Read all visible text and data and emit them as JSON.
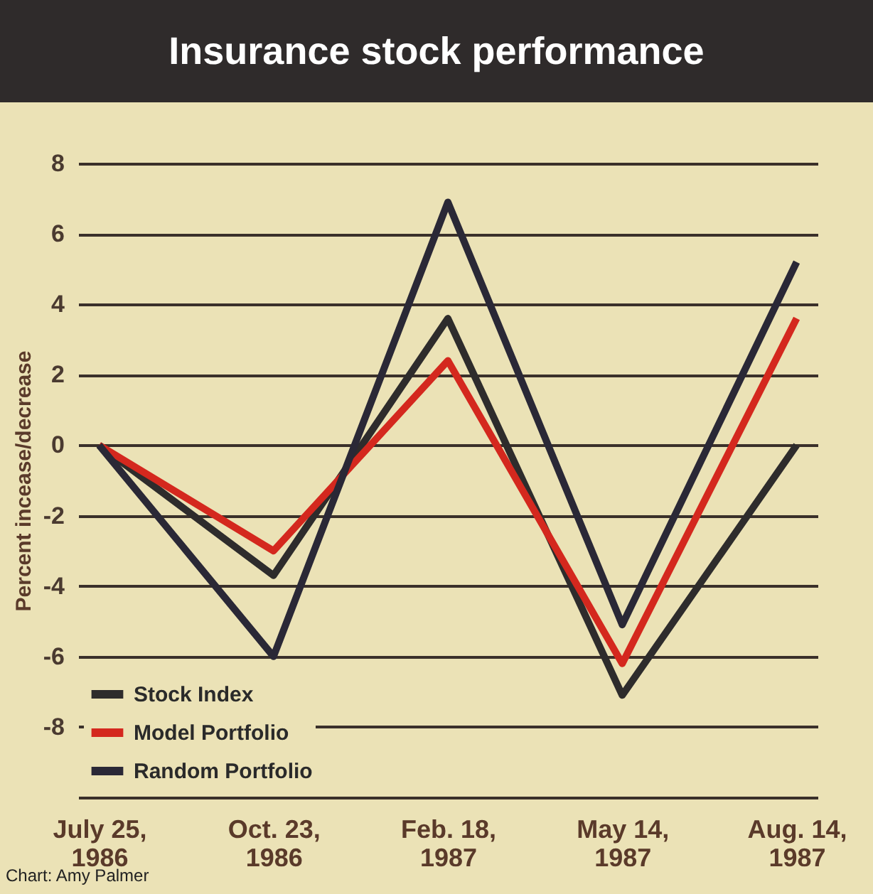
{
  "chart_data": {
    "type": "line",
    "title": "Insurance stock performance",
    "ylabel": "Percent incease/decrease",
    "categories": [
      "July 25, 1986",
      "Oct. 23, 1986",
      "Feb. 18, 1987",
      "May 14, 1987",
      "Aug. 14, 1987"
    ],
    "series": [
      {
        "name": "Stock Index",
        "color": "#2e2c2c",
        "values": [
          0,
          -3.7,
          3.6,
          -7.1,
          0
        ]
      },
      {
        "name": "Model Portfolio",
        "color": "#d4281e",
        "values": [
          0,
          -3,
          2.4,
          -6.2,
          3.6
        ]
      },
      {
        "name": "Random Portfolio",
        "color": "#2a2836",
        "values": [
          0,
          -6,
          6.9,
          -5.1,
          5.2
        ]
      }
    ],
    "ylim": [
      -10,
      8
    ],
    "yticks": [
      {
        "value": -10,
        "label": null
      },
      -8,
      -6,
      -4,
      -2,
      0,
      2,
      4,
      6,
      8
    ],
    "grid": "y",
    "legend": "bottom left",
    "line_style": "solid",
    "marker": "none",
    "annotations": [
      "Chart: Amy Palmer"
    ]
  }
}
